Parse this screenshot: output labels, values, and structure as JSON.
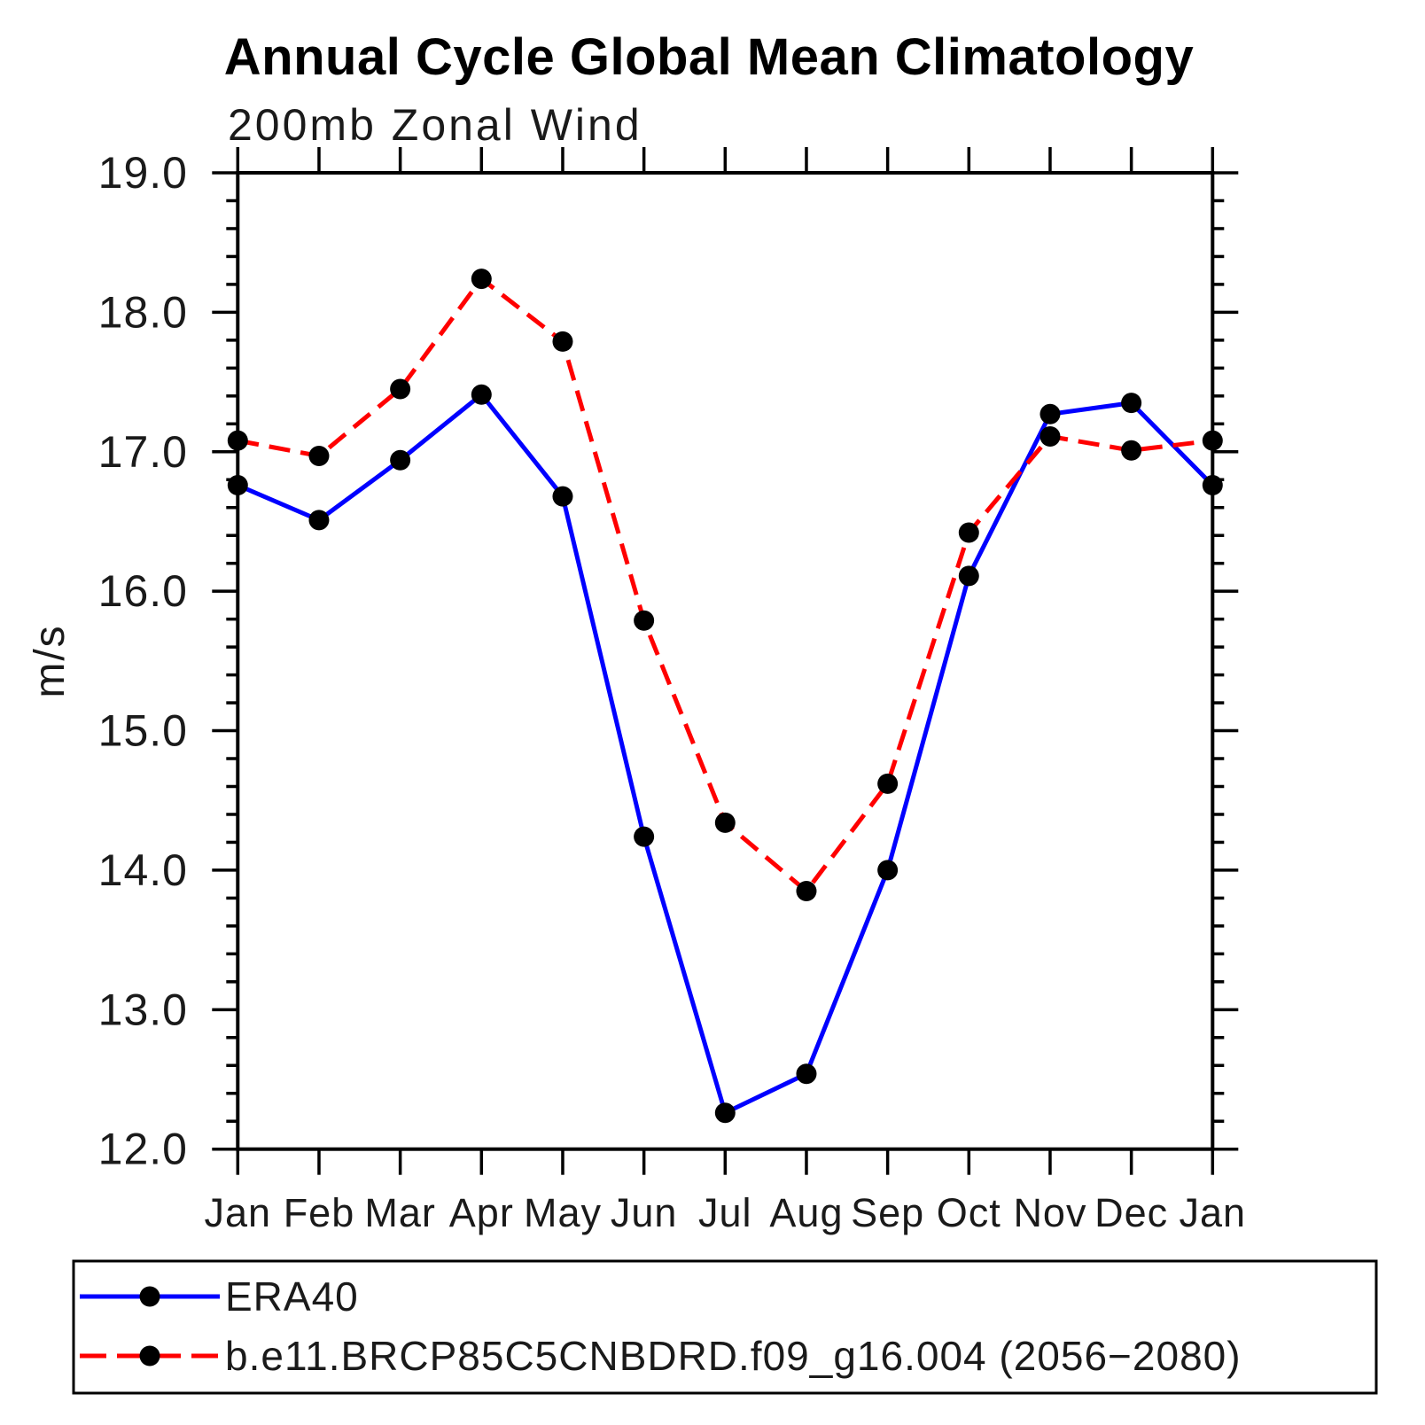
{
  "header": {
    "title": "Annual Cycle Global Mean Climatology",
    "subtitle": "200mb Zonal Wind"
  },
  "axes": {
    "y": {
      "label": "m/s",
      "min": 12.0,
      "max": 19.0,
      "major_step": 1.0,
      "minor_step": 0.2,
      "tick_labels": [
        "12.0",
        "13.0",
        "14.0",
        "15.0",
        "16.0",
        "17.0",
        "18.0",
        "19.0"
      ]
    },
    "x": {
      "tick_labels": [
        "Jan",
        "Feb",
        "Mar",
        "Apr",
        "May",
        "Jun",
        "Jul",
        "Aug",
        "Sep",
        "Oct",
        "Nov",
        "Dec",
        "Jan"
      ]
    }
  },
  "chart_data": {
    "type": "line",
    "title": "Annual Cycle Global Mean Climatology",
    "subtitle": "200mb Zonal Wind",
    "xlabel": "",
    "ylabel": "m/s",
    "ylim": [
      12.0,
      19.0
    ],
    "grid": false,
    "legend_position": "bottom-left-box",
    "categories": [
      "Jan",
      "Feb",
      "Mar",
      "Apr",
      "May",
      "Jun",
      "Jul",
      "Aug",
      "Sep",
      "Oct",
      "Nov",
      "Dec",
      "Jan"
    ],
    "series": [
      {
        "name": "ERA40",
        "color": "#0000ff",
        "line_style": "solid",
        "marker": "circle",
        "marker_color": "#000000",
        "values": [
          16.76,
          16.51,
          16.94,
          17.41,
          16.68,
          14.24,
          12.26,
          12.54,
          14.0,
          16.11,
          17.27,
          17.35,
          16.76
        ]
      },
      {
        "name": "b.e11.BRCP85C5CNBDRD.f09_g16.004 (2056−2080)",
        "color": "#ff0000",
        "line_style": "dashed",
        "marker": "circle",
        "marker_color": "#000000",
        "values": [
          17.08,
          16.97,
          17.45,
          18.24,
          17.79,
          15.79,
          14.34,
          13.85,
          14.62,
          16.42,
          17.11,
          17.01,
          17.08
        ]
      }
    ]
  },
  "colors": {
    "background": "#ffffff",
    "axis": "#000000",
    "marker": "#000000",
    "series_blue": "#0000ff",
    "series_red": "#ff0000"
  }
}
